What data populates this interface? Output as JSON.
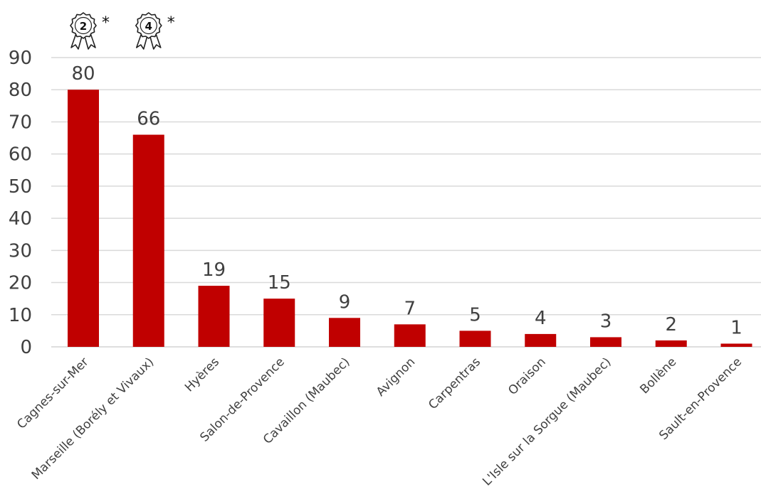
{
  "chart_data": {
    "type": "bar",
    "categories": [
      "Cagnes-sur-Mer",
      "Marseille (Borély et Vivaux)",
      "Hyères",
      "Salon-de-Provence",
      "Cavaillon (Maubec)",
      "Avignon",
      "Carpentras",
      "Oraison",
      "L'Isle sur la Sorgue (Maubec)",
      "Bollène",
      "Sault-en-Provence"
    ],
    "values": [
      80,
      66,
      19,
      15,
      9,
      7,
      5,
      4,
      3,
      2,
      1
    ],
    "ylim": [
      0,
      90
    ],
    "yticks": [
      "0",
      "10",
      "20",
      "30",
      "40",
      "50",
      "60",
      "70",
      "80",
      "90"
    ],
    "grid": true,
    "bar_color": "#C00000",
    "badges": [
      {
        "category_index": 0,
        "number": "2",
        "mark": "*",
        "icon": "award-ribbon-icon"
      },
      {
        "category_index": 1,
        "number": "4",
        "mark": "*",
        "icon": "award-ribbon-icon"
      }
    ]
  }
}
